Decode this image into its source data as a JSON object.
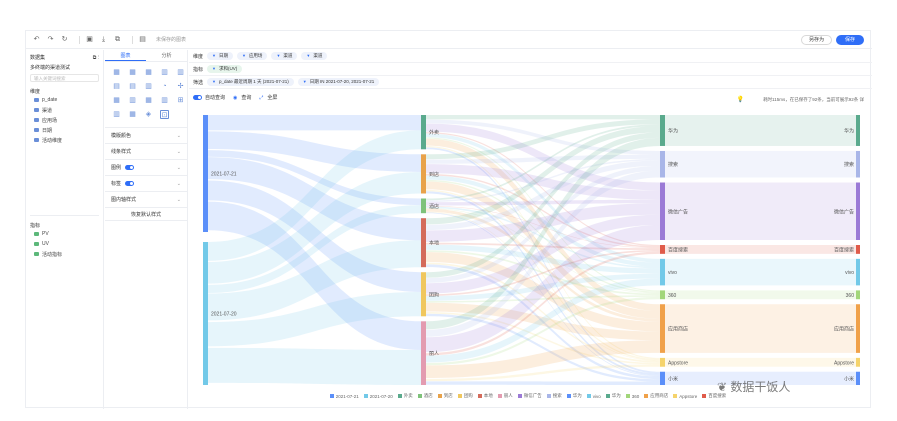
{
  "toolbar": {
    "title": "未保存的图表",
    "save_label": "另存为",
    "publish_label": "保存"
  },
  "data_panel": {
    "title": "数据集",
    "dataset_name": "多终端的渠道测试",
    "search_placeholder": "输入关键词搜索",
    "dims_title": "维度",
    "dims": [
      "p_date",
      "渠道",
      "应用场",
      "日期",
      "活动维度"
    ],
    "measures_title": "指标",
    "measures": [
      "PV",
      "UV",
      "活动指标"
    ]
  },
  "chart_panel": {
    "tabs": [
      "图表",
      "分析"
    ],
    "chart_icons": [
      "▦",
      "▦",
      "▦",
      "▥",
      "▥",
      "▤",
      "▤",
      "▥",
      "◔",
      "✢",
      "▦",
      "▥",
      "▦",
      "▥",
      "⊞",
      "▥",
      "▦",
      "◈",
      "⊡"
    ],
    "options": [
      {
        "label": "模版颜色",
        "toggle": false
      },
      {
        "label": "线条样式",
        "toggle": false
      },
      {
        "label": "图例",
        "toggle": true
      },
      {
        "label": "标签",
        "toggle": true
      },
      {
        "label": "图内轴样式",
        "toggle": false
      }
    ],
    "reset_label": "恢复默认样式"
  },
  "filters": {
    "dims_label": "维度",
    "dims": [
      "日期",
      "应用场",
      "渠道",
      "渠道"
    ],
    "measure_label": "指标",
    "measures": [
      "求和(UV)"
    ],
    "filter_label": "筛选",
    "filter_items": [
      "p_date 最近周期 1 天 (2021-07-21)",
      "日期 IN 2021-07-20, 2021-07-21"
    ]
  },
  "controls": {
    "auto_query": "自动查询",
    "query": "查询",
    "fullscreen": "全屏",
    "hint": "耗时115ms，在已保存了92条，当前可展示92条 详"
  },
  "chart_data": {
    "type": "sankey",
    "levels": [
      [
        {
          "name": "2021-07-21",
          "color": "#5b8ff9",
          "value": 45
        },
        {
          "name": "2021-07-20",
          "color": "#72c9e8",
          "value": 55
        }
      ],
      [
        {
          "name": "外卖",
          "color": "#5aaa8d",
          "value": 14
        },
        {
          "name": "到店",
          "color": "#e8a24a",
          "value": 16
        },
        {
          "name": "酒店",
          "color": "#7ec27a",
          "value": 6
        },
        {
          "name": "本地",
          "color": "#d46b5b",
          "value": 20
        },
        {
          "name": "团购",
          "color": "#f0c75e",
          "value": 18
        },
        {
          "name": "丽人",
          "color": "#e39bb0",
          "value": 26
        }
      ],
      [
        {
          "name": "华为",
          "color": "#5aaa8d",
          "value": 14
        },
        {
          "name": "搜索",
          "color": "#a9b6e8",
          "value": 12
        },
        {
          "name": "微信广告",
          "color": "#9b7ad6",
          "value": 26
        },
        {
          "name": "百度搜索",
          "color": "#e05b4a",
          "value": 4
        },
        {
          "name": "vivo",
          "color": "#72c9e8",
          "value": 12
        },
        {
          "name": "360",
          "color": "#a2d67a",
          "value": 4
        },
        {
          "name": "应用商店",
          "color": "#f0a14a",
          "value": 22
        },
        {
          "name": "Appstore",
          "color": "#f5d36b",
          "value": 4
        },
        {
          "name": "小米",
          "color": "#5b8ff9",
          "value": 6
        }
      ]
    ],
    "legend": [
      "2021-07-21",
      "2021-07-20",
      "外卖",
      "酒店",
      "到店",
      "团购",
      "本地",
      "丽人",
      "微信广告",
      "搜索",
      "华为",
      "vivo",
      "华为",
      "360",
      "应用商店",
      "Appstore",
      "百度搜索"
    ],
    "legend_colors": [
      "#5b8ff9",
      "#72c9e8",
      "#5aaa8d",
      "#7ec27a",
      "#e8a24a",
      "#f0c75e",
      "#d46b5b",
      "#e39bb0",
      "#9b7ad6",
      "#a9b6e8",
      "#5b8ff9",
      "#72c9e8",
      "#5aaa8d",
      "#a2d67a",
      "#f0a14a",
      "#f5d36b",
      "#e05b4a"
    ]
  },
  "watermark": "数据干饭人"
}
